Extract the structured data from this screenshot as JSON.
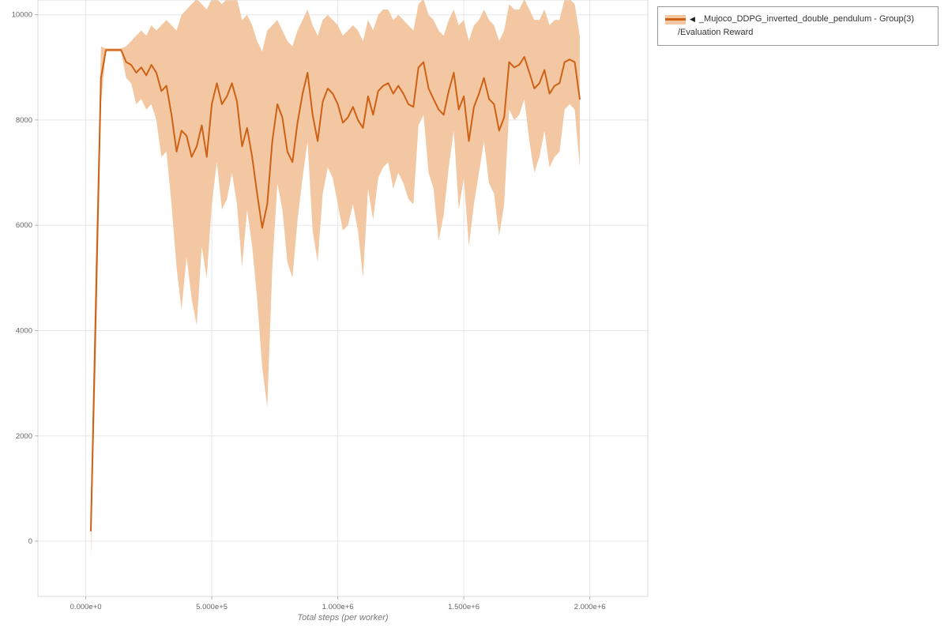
{
  "legend": {
    "marker_icon": "◀",
    "series_label": "_Mujoco_DDPG_inverted_double_pendulum - Group(3)",
    "metric_label": "/Evaluation Reward"
  },
  "axes": {
    "x_title": "Total steps (per worker)",
    "x_tick_labels": [
      "0.000e+0",
      "5.000e+5",
      "1.000e+6",
      "1.500e+6",
      "2.000e+6"
    ],
    "x_tick_values": [
      0,
      500000,
      1000000,
      1500000,
      2000000
    ],
    "y_tick_labels": [
      "0",
      "2000",
      "4000",
      "6000",
      "8000",
      "10000"
    ],
    "y_tick_values": [
      0,
      2000,
      4000,
      6000,
      8000,
      10000
    ]
  },
  "colors": {
    "line": "#cd6116",
    "band": "#f3c7a1",
    "grid": "#e7e7e7",
    "border": "#d8d8d8",
    "tick": "#b0b0b0",
    "tick_text": "#666666"
  },
  "chart_data": {
    "type": "line",
    "title": "",
    "xlabel": "Total steps (per worker)",
    "ylabel": "",
    "xlim": [
      -190000,
      2230000
    ],
    "ylim": [
      -1050,
      10280
    ],
    "grid": true,
    "legend_position": "outside-top-right",
    "series": [
      {
        "name": "_Mujoco_DDPG_inverted_double_pendulum - Group(3) /Evaluation Reward",
        "x": [
          20000,
          40000,
          60000,
          80000,
          100000,
          120000,
          140000,
          160000,
          180000,
          200000,
          220000,
          240000,
          260000,
          280000,
          300000,
          320000,
          340000,
          360000,
          380000,
          400000,
          420000,
          440000,
          460000,
          480000,
          500000,
          520000,
          540000,
          560000,
          580000,
          600000,
          620000,
          640000,
          660000,
          680000,
          700000,
          720000,
          740000,
          760000,
          780000,
          800000,
          820000,
          840000,
          860000,
          880000,
          900000,
          920000,
          940000,
          960000,
          980000,
          1000000,
          1020000,
          1040000,
          1060000,
          1080000,
          1100000,
          1120000,
          1140000,
          1160000,
          1180000,
          1200000,
          1220000,
          1240000,
          1260000,
          1280000,
          1300000,
          1320000,
          1340000,
          1360000,
          1380000,
          1400000,
          1420000,
          1440000,
          1460000,
          1480000,
          1500000,
          1520000,
          1540000,
          1560000,
          1580000,
          1600000,
          1620000,
          1640000,
          1660000,
          1680000,
          1700000,
          1720000,
          1740000,
          1760000,
          1780000,
          1800000,
          1820000,
          1840000,
          1860000,
          1880000,
          1900000,
          1920000,
          1940000,
          1960000
        ],
        "mean": [
          200,
          4500,
          8800,
          9330,
          9330,
          9330,
          9330,
          9100,
          9050,
          8900,
          9000,
          8850,
          9050,
          8900,
          8550,
          8650,
          8100,
          7400,
          7800,
          7700,
          7300,
          7500,
          7900,
          7300,
          8300,
          8700,
          8300,
          8450,
          8700,
          8350,
          7500,
          7850,
          7300,
          6600,
          5950,
          6400,
          7600,
          8300,
          8050,
          7400,
          7200,
          7950,
          8500,
          8900,
          8100,
          7600,
          8350,
          8600,
          8500,
          8300,
          7950,
          8050,
          8250,
          8000,
          7850,
          8450,
          8100,
          8550,
          8650,
          8700,
          8500,
          8650,
          8500,
          8300,
          8250,
          9000,
          9100,
          8600,
          8400,
          8200,
          8100,
          8550,
          8900,
          8200,
          8450,
          7600,
          8250,
          8500,
          8800,
          8400,
          8300,
          7800,
          8050,
          9100,
          9000,
          9050,
          9200,
          8900,
          8600,
          8700,
          8950,
          8500,
          8650,
          8700,
          9100,
          9150,
          9100,
          8400
        ],
        "band_lower": [
          -300,
          3500,
          8300,
          9300,
          9300,
          9300,
          9300,
          8800,
          8700,
          8300,
          8400,
          8200,
          8300,
          8000,
          7300,
          7400,
          6400,
          5200,
          4400,
          5400,
          4600,
          4100,
          5600,
          5000,
          6400,
          7200,
          6300,
          6500,
          7000,
          6400,
          5200,
          6300,
          5600,
          4600,
          3300,
          2550,
          5200,
          6800,
          6300,
          5300,
          5000,
          6100,
          6900,
          7600,
          5900,
          5300,
          6600,
          7100,
          6900,
          6400,
          5900,
          6000,
          6400,
          5900,
          5000,
          6700,
          6100,
          6900,
          7100,
          7200,
          6700,
          7000,
          6800,
          6500,
          6400,
          7900,
          8100,
          7000,
          6700,
          5700,
          6200,
          7100,
          7800,
          6300,
          6900,
          5600,
          6400,
          7000,
          7600,
          6800,
          6600,
          5800,
          6400,
          8200,
          8000,
          8100,
          8400,
          7600,
          7000,
          7300,
          7800,
          7100,
          7300,
          7400,
          8200,
          8300,
          8200,
          7100
        ],
        "band_upper": [
          700,
          5500,
          9400,
          9360,
          9360,
          9360,
          9360,
          9400,
          9500,
          9600,
          9700,
          9600,
          9800,
          9700,
          9800,
          9900,
          9800,
          9700,
          10000,
          10100,
          10200,
          10300,
          10200,
          10100,
          10300,
          10300,
          10200,
          10300,
          10300,
          10300,
          9900,
          10000,
          9800,
          9500,
          9300,
          9700,
          9800,
          9900,
          9700,
          9500,
          9400,
          9700,
          9900,
          10100,
          9800,
          9600,
          9900,
          10000,
          9900,
          9800,
          9600,
          9700,
          9800,
          9700,
          9500,
          9900,
          9700,
          10000,
          10100,
          10100,
          9900,
          10000,
          9900,
          9800,
          9700,
          10200,
          10300,
          10000,
          9900,
          9700,
          9600,
          9900,
          10100,
          9800,
          9900,
          9500,
          9800,
          9900,
          10100,
          9900,
          9800,
          9500,
          9700,
          10200,
          10100,
          10100,
          10300,
          10100,
          9900,
          9900,
          10100,
          9800,
          9900,
          9900,
          10300,
          10300,
          10200,
          9600
        ]
      }
    ]
  }
}
